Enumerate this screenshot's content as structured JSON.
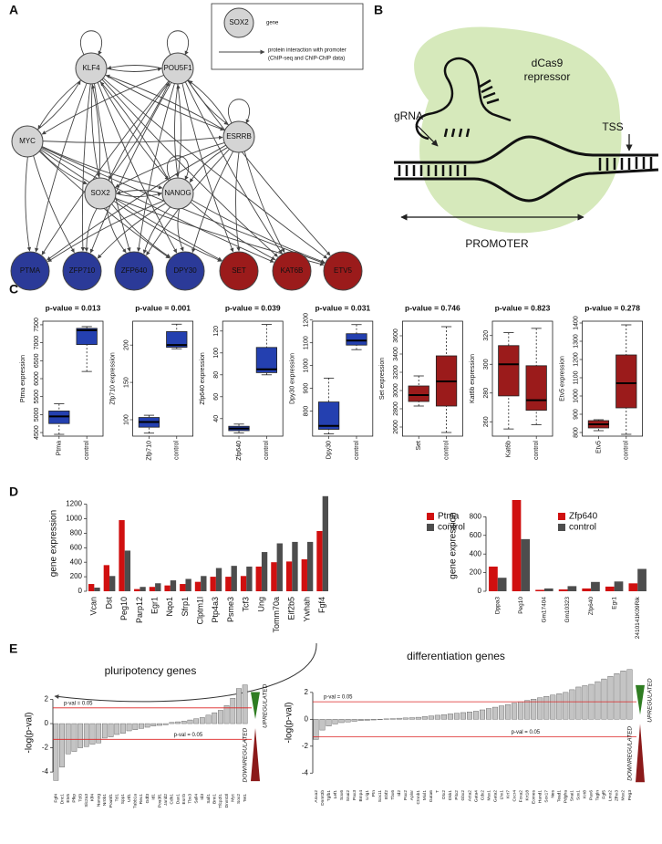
{
  "panel_labels": [
    "A",
    "B",
    "C",
    "D",
    "E"
  ],
  "network": {
    "legend": {
      "node": "SOX2",
      "node_text": "gene",
      "edge_text": "protein interaction with promoter",
      "edge_text2": "(ChIP-seq and ChIP-ChIP data)"
    },
    "nodes": [
      {
        "label": "KLF4",
        "color": "#d4d4d4"
      },
      {
        "label": "POU5F1",
        "color": "#d4d4d4"
      },
      {
        "label": "MYC",
        "color": "#d4d4d4"
      },
      {
        "label": "ESRRB",
        "color": "#d4d4d4"
      },
      {
        "label": "SOX2",
        "color": "#d4d4d4"
      },
      {
        "label": "NANOG",
        "color": "#d4d4d4"
      },
      {
        "label": "PTMA",
        "color": "#2b3a98"
      },
      {
        "label": "ZFP710",
        "color": "#2b3a98"
      },
      {
        "label": "ZFP640",
        "color": "#2b3a98"
      },
      {
        "label": "DPY30",
        "color": "#2b3a98"
      },
      {
        "label": "SET",
        "color": "#9b1b1b"
      },
      {
        "label": "KAT6B",
        "color": "#9b1b1b"
      },
      {
        "label": "ETV5",
        "color": "#9b1b1b"
      }
    ]
  },
  "crispr": {
    "protein": "dCas9",
    "protein2": "repressor",
    "grna": "gRNA",
    "tss": "TSS",
    "promoter": "PROMOTER"
  },
  "chart_data": [
    {
      "type": "box",
      "title": "p-value = 0.013",
      "ylabel": "Ptma expression",
      "color": "#2440b0",
      "categories": [
        "Ptma",
        "control"
      ],
      "boxes": [
        {
          "min": 4450,
          "q1": 4750,
          "median": 4950,
          "q3": 5100,
          "max": 5300
        },
        {
          "min": 6200,
          "q1": 6950,
          "median": 7350,
          "q3": 7400,
          "max": 7450
        }
      ],
      "ylim": [
        4400,
        7600
      ],
      "yticks": [
        4500,
        5000,
        5500,
        6000,
        6500,
        7000,
        7500
      ]
    },
    {
      "type": "box",
      "title": "p-value = 0.001",
      "ylabel": "Zfp710 expression",
      "color": "#2440b0",
      "categories": [
        "Zfp710",
        "control"
      ],
      "boxes": [
        {
          "min": 82,
          "q1": 90,
          "median": 97,
          "q3": 103,
          "max": 106
        },
        {
          "min": 195,
          "q1": 197,
          "median": 200,
          "q3": 218,
          "max": 228
        }
      ],
      "ylim": [
        78,
        232
      ],
      "yticks": [
        100,
        150,
        200
      ]
    },
    {
      "type": "box",
      "title": "p-value = 0.039",
      "ylabel": "Zfp640 expression",
      "color": "#2440b0",
      "categories": [
        "Zfp640",
        "control"
      ],
      "boxes": [
        {
          "min": 27,
          "q1": 29,
          "median": 31,
          "q3": 33,
          "max": 35
        },
        {
          "min": 80,
          "q1": 82,
          "median": 85,
          "q3": 105,
          "max": 126
        }
      ],
      "ylim": [
        24,
        129
      ],
      "yticks": [
        40,
        60,
        80,
        100,
        120
      ]
    },
    {
      "type": "box",
      "title": "p-value = 0.031",
      "ylabel": "Dpy30 expression",
      "color": "#2440b0",
      "categories": [
        "Dpy30",
        "control"
      ],
      "boxes": [
        {
          "min": 700,
          "q1": 720,
          "median": 735,
          "q3": 840,
          "max": 945
        },
        {
          "min": 1070,
          "q1": 1090,
          "median": 1110,
          "q3": 1140,
          "max": 1180
        }
      ],
      "ylim": [
        690,
        1195
      ],
      "yticks": [
        800,
        900,
        1000,
        1100,
        1200
      ]
    },
    {
      "type": "box",
      "title": "p-value = 0.746",
      "ylabel": "Set expression",
      "color": "#9b1b1b",
      "categories": [
        "Set",
        "control"
      ],
      "boxes": [
        {
          "min": 2830,
          "q1": 2880,
          "median": 2950,
          "q3": 3050,
          "max": 3160
        },
        {
          "min": 2540,
          "q1": 2830,
          "median": 3100,
          "q3": 3380,
          "max": 3700
        }
      ],
      "ylim": [
        2500,
        3760
      ],
      "yticks": [
        2600,
        2800,
        3000,
        3200,
        3400,
        3600
      ]
    },
    {
      "type": "box",
      "title": "p-value = 0.823",
      "ylabel": "Kat6b expression",
      "color": "#9b1b1b",
      "categories": [
        "Kat6b",
        "control"
      ],
      "boxes": [
        {
          "min": 255,
          "q1": 278,
          "median": 300,
          "q3": 313,
          "max": 322
        },
        {
          "min": 258,
          "q1": 268,
          "median": 275,
          "q3": 299,
          "max": 325
        }
      ],
      "ylim": [
        250,
        330
      ],
      "yticks": [
        260,
        280,
        300,
        320
      ]
    },
    {
      "type": "box",
      "title": "p-value = 0.278",
      "ylabel": "Etv5 expression",
      "color": "#9b1b1b",
      "categories": [
        "Etv5",
        "control"
      ],
      "boxes": [
        {
          "min": 810,
          "q1": 825,
          "median": 845,
          "q3": 865,
          "max": 870
        },
        {
          "min": 790,
          "q1": 935,
          "median": 1070,
          "q3": 1225,
          "max": 1390
        }
      ],
      "ylim": [
        780,
        1410
      ],
      "yticks": [
        800,
        900,
        1000,
        1100,
        1200,
        1300,
        1400
      ]
    },
    {
      "type": "bar",
      "ylabel": "gene expression",
      "legend": "top-right",
      "categories": [
        "Vcan",
        "Dst",
        "Peg10",
        "Parp12",
        "Egr1",
        "Nqo1",
        "Sfrp1",
        "Clptm1l",
        "Ptp4a3",
        "Psme3",
        "Tcf3",
        "Ung",
        "Tomm70a",
        "Eif2b5",
        "Ywhah",
        "Fgf4"
      ],
      "series": [
        {
          "name": "Ptma",
          "color": "#d01010",
          "values": [
            100,
            360,
            980,
            30,
            60,
            80,
            100,
            130,
            200,
            200,
            210,
            340,
            400,
            410,
            440,
            830
          ]
        },
        {
          "name": "control",
          "color": "#4d4d4d",
          "values": [
            50,
            210,
            560,
            60,
            110,
            150,
            170,
            210,
            320,
            350,
            340,
            540,
            660,
            680,
            680,
            1310
          ]
        }
      ],
      "ylim": [
        0,
        1320
      ],
      "yticks": [
        0,
        200,
        400,
        600,
        800,
        1000,
        1200
      ]
    },
    {
      "type": "bar",
      "ylabel": "gene expression",
      "legend": "top-right",
      "categories": [
        "Dppa3",
        "Peg10",
        "Gm17404",
        "Gm10323",
        "Zfp640",
        "Egr1",
        "2410141K09Rik"
      ],
      "series": [
        {
          "name": "Zfp640",
          "color": "#d01010",
          "values": [
            265,
            980,
            15,
            20,
            30,
            50,
            85
          ]
        },
        {
          "name": "control",
          "color": "#4d4d4d",
          "values": [
            145,
            560,
            30,
            55,
            100,
            105,
            240
          ]
        }
      ],
      "ylim": [
        0,
        980
      ],
      "yticks": [
        0,
        200,
        400,
        600,
        800
      ]
    },
    {
      "type": "bar",
      "title": "pluripotency genes",
      "ylabel": "-log(p-val)",
      "color": "#c4c4c4",
      "up_label": "UPREGULATED",
      "down_label": "DOWNREGULATED",
      "threshold_label": "p-val = 0.05",
      "thresholds": [
        1.3,
        -1.3
      ],
      "categories": [
        "Fgf4",
        "Dnc1",
        "Etv5",
        "Pfkp",
        "Tcf3",
        "Slc2a3",
        "Klf4",
        "Nanog",
        "Nr0b1",
        "Pou5f1",
        "Tcl1",
        "Spp1",
        "Utf1",
        "Tubb1a",
        "Rex1",
        "Gdf3",
        "Id1",
        "Pou3f1",
        "Jarid2",
        "Cdh1",
        "Dax1",
        "Esrrb",
        "Tbx3",
        "Sall4",
        "Id3",
        "Sall1",
        "Bmi1",
        "Tfcp2l1",
        "Dnmt3l",
        "Myc",
        "Sox2",
        "Tet1"
      ],
      "values": [
        -4.7,
        -3.6,
        -2.5,
        -2.3,
        -2.0,
        -1.9,
        -1.7,
        -1.6,
        -1.2,
        -1.1,
        -0.9,
        -0.8,
        -0.6,
        -0.5,
        -0.4,
        -0.3,
        -0.2,
        -0.15,
        -0.1,
        0.1,
        0.15,
        0.2,
        0.3,
        0.4,
        0.5,
        0.7,
        0.9,
        1.1,
        1.5,
        2.1,
        2.9,
        3.2
      ],
      "ylim": [
        -5.5,
        4
      ],
      "yticks": [
        -4,
        -2,
        0,
        2
      ]
    },
    {
      "type": "bar",
      "title": "differentiation genes",
      "ylabel": "-log(p-val)",
      "color": "#c4c4c4",
      "up_label": "UPREGULATED",
      "down_label": "DOWNREGULATED",
      "threshold_label": "p-val = 0.05",
      "thresholds": [
        1.3,
        -1.3
      ],
      "categories": [
        "Anxa2",
        "Dnmt3b",
        "Tgfb1",
        "Lef1",
        "Sox6",
        "Snai2",
        "Pax3",
        "Bmp4",
        "Lrig1",
        "Ptn",
        "Sox11",
        "Ebf2",
        "Tbx6",
        "Id2",
        "Pax2",
        "Aplnr",
        "Ctnnb1",
        "Mixl1",
        "Gata6",
        "T",
        "Otx2",
        "Dkk1",
        "Pitx2",
        "Gbx2",
        "Acta2",
        "Gata4",
        "Cdx2",
        "Msx1",
        "Gata2",
        "Lhx1",
        "Krt7",
        "Cxcr4",
        "Foxa2",
        "Krt18",
        "Eomes",
        "Hand1",
        "Sox17",
        "Nes",
        "Tead1",
        "Pdgfra",
        "Snai1",
        "Sox1",
        "Krt8",
        "Pax6",
        "Tagln",
        "Fgf5",
        "Lmo2",
        "Zfhx3",
        "Msx2",
        "Peg3"
      ],
      "values": [
        -1.5,
        -0.8,
        -0.5,
        -0.35,
        -0.25,
        -0.2,
        -0.15,
        -0.1,
        -0.08,
        -0.05,
        -0.03,
        0.03,
        0.05,
        0.08,
        0.1,
        0.12,
        0.15,
        0.2,
        0.25,
        0.3,
        0.35,
        0.4,
        0.45,
        0.5,
        0.55,
        0.6,
        0.7,
        0.8,
        0.9,
        1.0,
        1.1,
        1.2,
        1.3,
        1.4,
        1.5,
        1.6,
        1.7,
        1.8,
        1.9,
        2.0,
        2.2,
        2.4,
        2.5,
        2.6,
        2.8,
        3.0,
        3.2,
        3.4,
        3.6,
        3.7
      ],
      "ylim": [
        -5,
        4.5
      ],
      "yticks": [
        -4,
        -2,
        0,
        2
      ]
    }
  ]
}
